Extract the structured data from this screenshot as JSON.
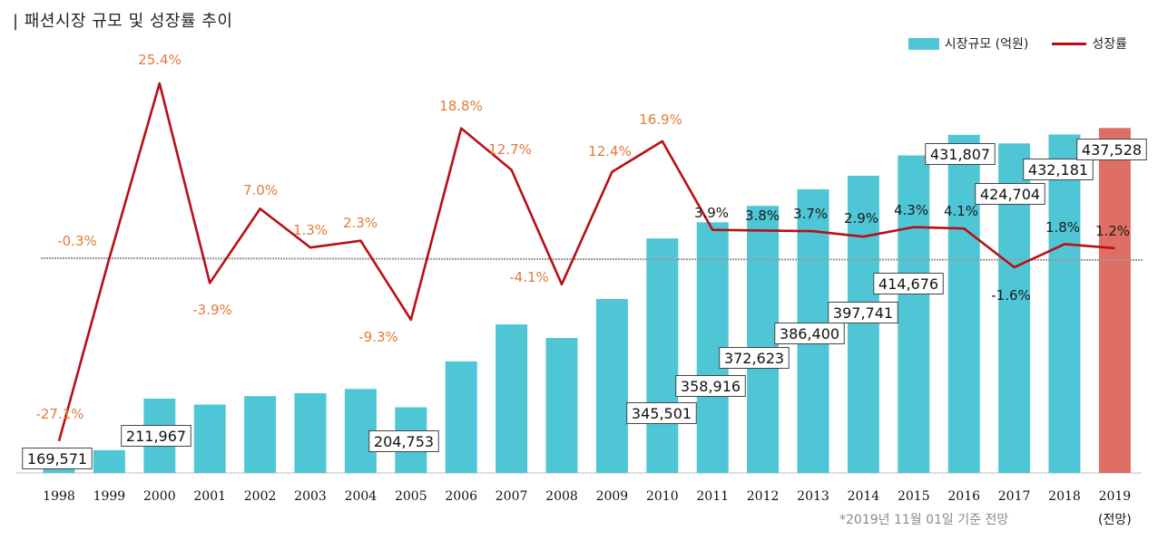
{
  "title": "| 패션시장 규모 및 성장률 추이",
  "footnote": "*2019년 11월 01일 기준 전망",
  "colors": {
    "bar": "#4fc6d6",
    "bar_forecast": "#df6e64",
    "line": "#b80f16",
    "label_orange": "#e07b3a",
    "label_dark": "#1a1a1a",
    "baseline": "#9a9a9a"
  },
  "chart_data": {
    "type": "bar+line",
    "categories": [
      "1998",
      "1999",
      "2000",
      "2001",
      "2002",
      "2003",
      "2004",
      "2005",
      "2006",
      "2007",
      "2008",
      "2009",
      "2010",
      "2011",
      "2012",
      "2013",
      "2014",
      "2015",
      "2016",
      "2017",
      "2018",
      "2019"
    ],
    "forecast_note": "(전망)",
    "legend": [
      "시장규모 (억원)",
      "성장률"
    ],
    "series": [
      {
        "name": "시장규모 (억원)",
        "type": "bar",
        "values": [
          169571,
          169000,
          211967,
          207000,
          214000,
          216500,
          220000,
          204753,
          243000,
          273800,
          262500,
          295000,
          345501,
          358916,
          372623,
          386400,
          397741,
          414676,
          431807,
          424704,
          432181,
          437528
        ],
        "labels": [
          "169,571",
          "",
          "211,967",
          "",
          "",
          "",
          "",
          "204,753",
          "",
          "",
          "",
          "",
          "345,501",
          "358,916",
          "372,623",
          "386,400",
          "397,741",
          "414,676",
          "431,807",
          "424,704",
          "432,181",
          "437,528"
        ],
        "ylim": [
          150000,
          440000
        ]
      },
      {
        "name": "성장률",
        "type": "line",
        "values": [
          -27.1,
          -0.3,
          25.4,
          -3.9,
          7.0,
          1.3,
          2.3,
          -9.3,
          18.8,
          12.7,
          -4.1,
          12.4,
          16.9,
          3.9,
          3.8,
          3.7,
          2.9,
          4.3,
          4.1,
          -1.6,
          1.8,
          1.2
        ],
        "labels": [
          "-27.1%",
          "-0.3%",
          "25.4%",
          "-3.9%",
          "7.0%",
          "1.3%",
          "2.3%",
          "-9.3%",
          "18.8%",
          "12.7%",
          "-4.1%",
          "12.4%",
          "16.9%",
          "3.9%",
          "3.8%",
          "3.7%",
          "2.9%",
          "4.3%",
          "4.1%",
          "-1.6%",
          "1.8%",
          "1.2%"
        ],
        "ylim": [
          -28,
          28
        ]
      }
    ],
    "baseline_y": 0
  }
}
